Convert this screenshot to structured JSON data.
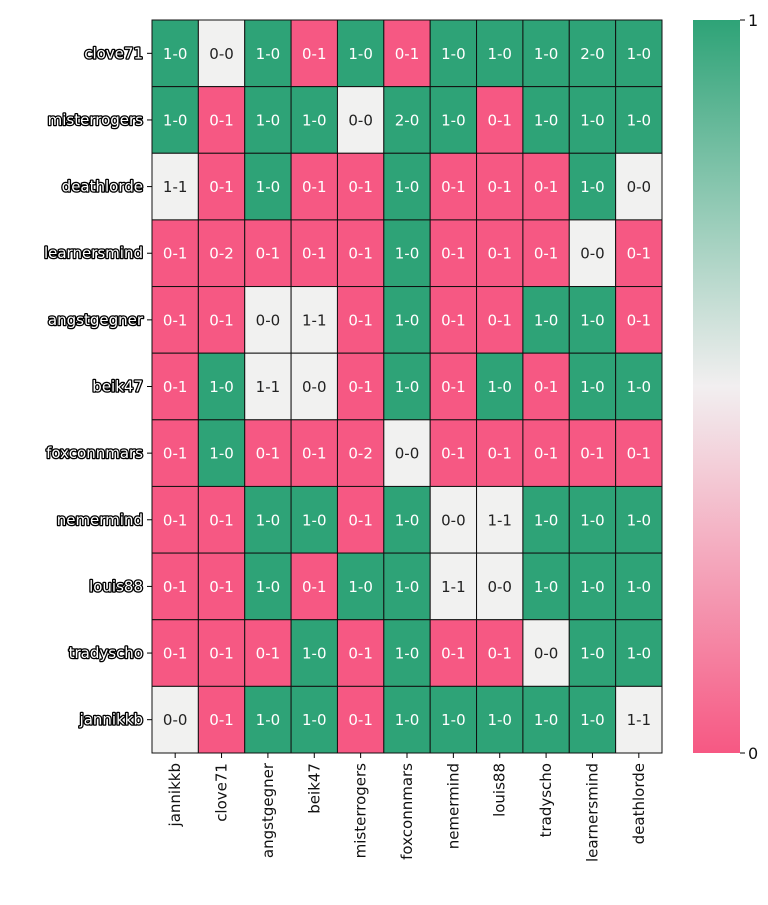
{
  "chart_data": {
    "type": "heatmap",
    "title": "",
    "rows": [
      "clove71",
      "misterrogers",
      "deathlorde",
      "learnersmind",
      "angstgegner",
      "beik47",
      "foxconnmars",
      "nemermind",
      "louis88",
      "tradyscho",
      "jannikkb"
    ],
    "columns": [
      "jannikkb",
      "clove71",
      "angstgegner",
      "beik47",
      "misterrogers",
      "foxconnmars",
      "nemermind",
      "louis88",
      "tradyscho",
      "learnersmind",
      "deathlorde"
    ],
    "annotations": [
      [
        "1-0",
        "0-0",
        "1-0",
        "0-1",
        "1-0",
        "0-1",
        "1-0",
        "1-0",
        "1-0",
        "2-0",
        "1-0"
      ],
      [
        "1-0",
        "0-1",
        "1-0",
        "1-0",
        "0-0",
        "2-0",
        "1-0",
        "0-1",
        "1-0",
        "1-0",
        "1-0"
      ],
      [
        "1-1",
        "0-1",
        "1-0",
        "0-1",
        "0-1",
        "1-0",
        "0-1",
        "0-1",
        "0-1",
        "1-0",
        "0-0"
      ],
      [
        "0-1",
        "0-2",
        "0-1",
        "0-1",
        "0-1",
        "1-0",
        "0-1",
        "0-1",
        "0-1",
        "0-0",
        "0-1"
      ],
      [
        "0-1",
        "0-1",
        "0-0",
        "1-1",
        "0-1",
        "1-0",
        "0-1",
        "0-1",
        "1-0",
        "1-0",
        "0-1"
      ],
      [
        "0-1",
        "1-0",
        "1-1",
        "0-0",
        "0-1",
        "1-0",
        "0-1",
        "1-0",
        "0-1",
        "1-0",
        "1-0"
      ],
      [
        "0-1",
        "1-0",
        "0-1",
        "0-1",
        "0-2",
        "0-0",
        "0-1",
        "0-1",
        "0-1",
        "0-1",
        "0-1"
      ],
      [
        "0-1",
        "0-1",
        "1-0",
        "1-0",
        "0-1",
        "1-0",
        "0-0",
        "1-1",
        "1-0",
        "1-0",
        "1-0"
      ],
      [
        "0-1",
        "0-1",
        "1-0",
        "0-1",
        "1-0",
        "1-0",
        "1-1",
        "0-0",
        "1-0",
        "1-0",
        "1-0"
      ],
      [
        "0-1",
        "0-1",
        "0-1",
        "1-0",
        "0-1",
        "1-0",
        "0-1",
        "0-1",
        "0-0",
        "1-0",
        "1-0"
      ],
      [
        "0-0",
        "0-1",
        "1-0",
        "1-0",
        "0-1",
        "1-0",
        "1-0",
        "1-0",
        "1-0",
        "1-0",
        "1-1"
      ]
    ],
    "colorbar": {
      "min": 0,
      "max": 1,
      "tick_labels": [
        "0",
        "1"
      ]
    },
    "colors": {
      "low": "#f65883",
      "mid": "#f1f1f0",
      "high": "#2ea377"
    }
  }
}
